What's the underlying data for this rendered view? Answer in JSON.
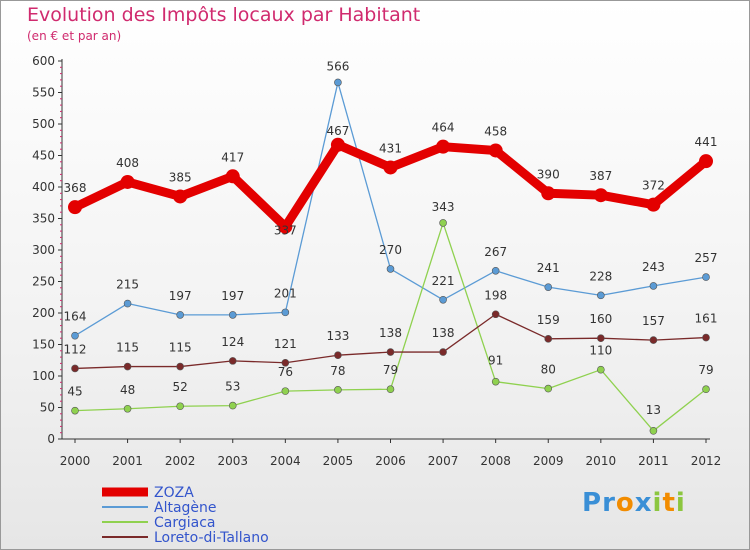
{
  "chart_data": {
    "type": "line",
    "title": "Evolution des Impôts locaux par Habitant",
    "subtitle": "(en € et par an)",
    "x": [
      "2000",
      "2001",
      "2002",
      "2003",
      "2004",
      "2005",
      "2006",
      "2007",
      "2008",
      "2009",
      "2010",
      "2011",
      "2012"
    ],
    "ylim": [
      0,
      600
    ],
    "yticks": [
      0,
      50,
      100,
      150,
      200,
      250,
      300,
      350,
      400,
      450,
      500,
      550,
      600
    ],
    "grid": false,
    "legend_position": "bottom-left",
    "series": [
      {
        "name": "ZOZA",
        "color": "#e30000",
        "values": [
          368,
          408,
          385,
          417,
          337,
          467,
          431,
          464,
          458,
          390,
          387,
          372,
          441
        ]
      },
      {
        "name": "Altagène",
        "color": "#5b9bd5",
        "values": [
          164,
          215,
          197,
          197,
          201,
          566,
          270,
          221,
          267,
          241,
          228,
          243,
          257
        ]
      },
      {
        "name": "Cargiaca",
        "color": "#8fd14f",
        "values": [
          45,
          48,
          52,
          53,
          76,
          78,
          79,
          343,
          91,
          80,
          110,
          13,
          79
        ]
      },
      {
        "name": "Loreto-di-Tallano",
        "color": "#7a2a2a",
        "values": [
          112,
          115,
          115,
          124,
          121,
          133,
          138,
          138,
          198,
          159,
          160,
          157,
          161
        ]
      }
    ]
  },
  "brand": {
    "logo_letters": [
      "P",
      "r",
      "o",
      "x",
      "i",
      "t",
      "i"
    ],
    "logo_colors": [
      "#3a8fd6",
      "#3a8fd6",
      "#f28c00",
      "#3a8fd6",
      "#8cc63f",
      "#f28c00",
      "#8cc63f"
    ]
  }
}
